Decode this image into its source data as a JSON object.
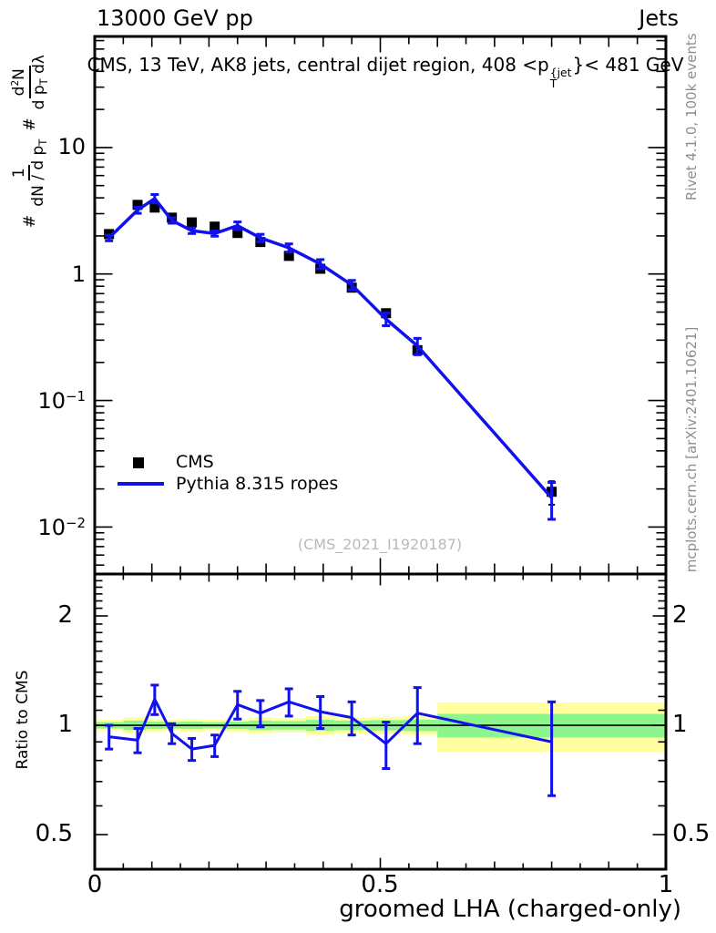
{
  "header": {
    "beam_energy": "13000 GeV pp",
    "process": "Jets"
  },
  "title": {
    "prefix": "CMS, 13 TeV, AK8 jets, central dijet region, 408 <p",
    "sup": "{jet",
    "sub": "T",
    "suffix": "}< 481 GeV"
  },
  "y_axis": {
    "hash1": "#",
    "frac1": {
      "num": "1",
      "den_pre": "dN / d p",
      "den_sub": "T"
    },
    "hash2": "#",
    "frac2": {
      "num_pre": "d",
      "num_sup": "2",
      "num_post": "N",
      "den_pre": "d p",
      "den_sub": "T",
      "den_post": " dλ"
    },
    "ticks": [
      {
        "base": "10",
        "exp": ""
      },
      {
        "base": "1",
        "exp": ""
      },
      {
        "base": "10",
        "exp": "−1"
      },
      {
        "base": "10",
        "exp": "−2"
      }
    ]
  },
  "ratio_axis": {
    "label": "Ratio to CMS",
    "ticks": [
      "2",
      "1",
      "0.5"
    ]
  },
  "x_axis": {
    "label": "groomed LHA (charged-only)",
    "ticks": [
      "0",
      "0.5",
      "1"
    ]
  },
  "legend": {
    "items": [
      {
        "label": "CMS"
      },
      {
        "label": "Pythia 8.315 ropes"
      }
    ]
  },
  "watermark": "(CMS_2021_I1920187)",
  "side_notes": {
    "generator": "Rivet 4.1.0,  100k events",
    "source": "mcplots.cern.ch [arXiv:2401.10621]"
  },
  "colors": {
    "mc_line": "#1111ee",
    "data_marker": "#000000",
    "band_outer": "#ffffa0",
    "band_inner": "#8cf58c",
    "watermark": "#b9b9b9",
    "side_note": "#8e8e8e",
    "axis": "#000000"
  },
  "chart_data": {
    "type": "line",
    "title": "CMS, 13 TeV, AK8 jets, central dijet region, 408 < pT{jet} < 481 GeV",
    "xlabel": "groomed LHA (charged-only)",
    "ylabel": "# 1/(dN/dpT) # d2N/(dpT dλ)",
    "xlim": [
      0,
      1
    ],
    "ylim_log": [
      0.00425,
      75.5
    ],
    "grid": false,
    "legend_position": "left-middle",
    "x_bin_edges": [
      0,
      0.05,
      0.09,
      0.12,
      0.15,
      0.19,
      0.23,
      0.27,
      0.31,
      0.37,
      0.42,
      0.48,
      0.54,
      0.6,
      1.0
    ],
    "x": [
      0.025,
      0.075,
      0.105,
      0.135,
      0.17,
      0.21,
      0.25,
      0.29,
      0.34,
      0.395,
      0.45,
      0.51,
      0.565,
      0.8
    ],
    "series": [
      {
        "name": "CMS",
        "style": "scatter-square",
        "color": "#000000",
        "y": [
          2.07,
          3.52,
          3.35,
          2.79,
          2.56,
          2.37,
          2.11,
          1.79,
          1.39,
          1.1,
          0.78,
          0.49,
          0.25,
          0.019
        ],
        "yerr": [
          0.07,
          0.12,
          0.11,
          0.09,
          0.08,
          0.07,
          0.06,
          0.05,
          0.04,
          0.03,
          0.02,
          0.015,
          0.012,
          0.004
        ]
      },
      {
        "name": "Pythia 8.315 ropes",
        "style": "line",
        "color": "#1111ee",
        "y": [
          1.93,
          3.2,
          3.95,
          2.65,
          2.2,
          2.09,
          2.41,
          1.93,
          1.61,
          1.2,
          0.82,
          0.44,
          0.27,
          0.017
        ],
        "yerr": [
          0.1,
          0.18,
          0.3,
          0.13,
          0.11,
          0.1,
          0.17,
          0.13,
          0.12,
          0.1,
          0.07,
          0.05,
          0.04,
          0.0055
        ]
      }
    ],
    "ratio_panel": {
      "ylabel": "Ratio to CMS",
      "ylim_log": [
        0.4015,
        2.609
      ],
      "reference": 1,
      "ratio": [
        0.93,
        0.91,
        1.18,
        0.95,
        0.86,
        0.88,
        1.14,
        1.08,
        1.16,
        1.09,
        1.05,
        0.89,
        1.08,
        0.9
      ],
      "ratio_err": [
        0.07,
        0.07,
        0.11,
        0.06,
        0.06,
        0.06,
        0.1,
        0.09,
        0.1,
        0.11,
        0.11,
        0.13,
        0.19,
        0.26
      ],
      "band_yellow_halfwidth": [
        0.035,
        0.05,
        0.04,
        0.035,
        0.04,
        0.035,
        0.04,
        0.05,
        0.045,
        0.06,
        0.05,
        0.055,
        0.06,
        0.155
      ],
      "band_green_halfwidth": [
        0.02,
        0.03,
        0.024,
        0.02,
        0.024,
        0.02,
        0.024,
        0.03,
        0.027,
        0.035,
        0.03,
        0.033,
        0.036,
        0.075
      ]
    }
  }
}
